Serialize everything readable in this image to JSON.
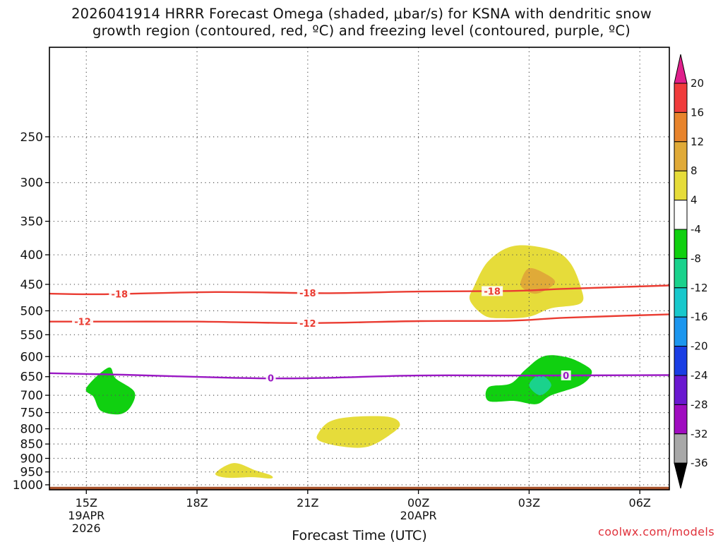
{
  "chart_data": {
    "type": "heatmap",
    "title_line1": "2026041914 HRRR Forecast Omega (shaded, μbar/s) for KSNA with dendritic snow",
    "title_line2": "growth region (contoured, red, ºC) and freezing level (contoured, purple, ºC)",
    "xlabel": "Forecast Time (UTC)",
    "ylabel": "",
    "credit": "coolwx.com/models",
    "xlim": [
      -1,
      15.8
    ],
    "ylim": [
      1020,
      175
    ],
    "y_scale": "log-pressure",
    "y_ticks": [
      250,
      300,
      350,
      400,
      450,
      500,
      550,
      600,
      650,
      700,
      750,
      800,
      850,
      900,
      950,
      1000
    ],
    "x_ticks": [
      {
        "hour": 0,
        "lines": [
          "15Z",
          "19APR",
          "2026"
        ]
      },
      {
        "hour": 3,
        "lines": [
          "18Z"
        ]
      },
      {
        "hour": 6,
        "lines": [
          "21Z"
        ]
      },
      {
        "hour": 9,
        "lines": [
          "00Z",
          "20APR"
        ]
      },
      {
        "hour": 12,
        "lines": [
          "03Z"
        ]
      },
      {
        "hour": 15,
        "lines": [
          "06Z"
        ]
      }
    ],
    "grid": true,
    "surface": {
      "pressure_top": 1008,
      "color": "#a8542d"
    },
    "colorbar": {
      "labels": [
        "20",
        "16",
        "12",
        "8",
        "4",
        "-4",
        "-8",
        "-12",
        "-16",
        "-20",
        "-24",
        "-28",
        "-32",
        "-36"
      ],
      "bins": [
        {
          "range": [
            16,
            20
          ],
          "color": "#f03c3c"
        },
        {
          "range": [
            12,
            16
          ],
          "color": "#e8842c"
        },
        {
          "range": [
            8,
            12
          ],
          "color": "#e0aa38"
        },
        {
          "range": [
            4,
            8
          ],
          "color": "#e6dc3a"
        },
        {
          "range": [
            -4,
            4
          ],
          "color": "#ffffff"
        },
        {
          "range": [
            -8,
            -4
          ],
          "color": "#10d010"
        },
        {
          "range": [
            -12,
            -8
          ],
          "color": "#1ad28c"
        },
        {
          "range": [
            -16,
            -12
          ],
          "color": "#18c8cc"
        },
        {
          "range": [
            -20,
            -16
          ],
          "color": "#1c96ee"
        },
        {
          "range": [
            -24,
            -20
          ],
          "color": "#1a3ee4"
        },
        {
          "range": [
            -28,
            -24
          ],
          "color": "#6a18d0"
        },
        {
          "range": [
            -32,
            -28
          ],
          "color": "#a00cc0"
        },
        {
          "range": [
            -36,
            -32
          ],
          "color": "#a8a8a8"
        }
      ],
      "over_color": "#e0208c",
      "under_color": "#000000"
    },
    "omega_regions": [
      {
        "name": "ascent-upper",
        "value": 6,
        "color": "#e6dc3a",
        "points": [
          [
            10.5,
            455
          ],
          [
            10.9,
            410
          ],
          [
            11.6,
            386
          ],
          [
            12.6,
            392
          ],
          [
            13.1,
            412
          ],
          [
            13.4,
            455
          ],
          [
            13.4,
            485
          ],
          [
            12.6,
            495
          ],
          [
            12.0,
            512
          ],
          [
            11.3,
            515
          ],
          [
            10.8,
            510
          ],
          [
            10.4,
            480
          ]
        ]
      },
      {
        "name": "ascent-upper-core",
        "value": 10,
        "color": "#e0aa38",
        "points": [
          [
            11.8,
            440
          ],
          [
            12.0,
            422
          ],
          [
            12.4,
            430
          ],
          [
            12.7,
            447
          ],
          [
            12.2,
            467
          ],
          [
            11.8,
            455
          ]
        ]
      },
      {
        "name": "ascent-mid",
        "value": 5,
        "color": "#e6dc3a",
        "points": [
          [
            6.3,
            812
          ],
          [
            6.6,
            777
          ],
          [
            7.2,
            763
          ],
          [
            8.2,
            763
          ],
          [
            8.5,
            787
          ],
          [
            8.2,
            822
          ],
          [
            7.6,
            860
          ],
          [
            6.9,
            858
          ],
          [
            6.3,
            838
          ]
        ]
      },
      {
        "name": "ascent-low",
        "value": 5,
        "color": "#e6dc3a",
        "points": [
          [
            3.5,
            955
          ],
          [
            4.0,
            917
          ],
          [
            4.6,
            945
          ],
          [
            5.0,
            963
          ],
          [
            5.0,
            975
          ],
          [
            4.5,
            970
          ],
          [
            3.8,
            972
          ]
        ]
      },
      {
        "name": "descent-left",
        "value": -6,
        "color": "#10d010",
        "points": [
          [
            0.0,
            680
          ],
          [
            0.6,
            627
          ],
          [
            0.8,
            655
          ],
          [
            1.3,
            690
          ],
          [
            1.2,
            733
          ],
          [
            0.9,
            755
          ],
          [
            0.4,
            745
          ],
          [
            0.2,
            705
          ]
        ]
      },
      {
        "name": "descent-right",
        "value": -6,
        "color": "#10d010",
        "points": [
          [
            10.9,
            678
          ],
          [
            11.5,
            668
          ],
          [
            11.9,
            632
          ],
          [
            12.4,
            599
          ],
          [
            13.0,
            601
          ],
          [
            13.5,
            620
          ],
          [
            13.7,
            640
          ],
          [
            13.4,
            672
          ],
          [
            12.6,
            700
          ],
          [
            12.2,
            725
          ],
          [
            11.6,
            716
          ],
          [
            10.9,
            716
          ]
        ]
      },
      {
        "name": "descent-right-core",
        "value": -10,
        "color": "#1ad28c",
        "points": [
          [
            12.0,
            672
          ],
          [
            12.3,
            645
          ],
          [
            12.6,
            672
          ],
          [
            12.3,
            700
          ]
        ]
      }
    ],
    "contours": [
      {
        "name": "dendritic-minus-18",
        "label": "-18",
        "color": "#ea3c32",
        "hours": [
          -1,
          0.5,
          3.5,
          6.5,
          9,
          11.5,
          13,
          15.8
        ],
        "pressures": [
          467,
          468,
          464,
          466,
          463,
          462,
          458,
          452
        ],
        "label_hours": [
          0.9,
          6,
          11
        ]
      },
      {
        "name": "dendritic-minus-12",
        "label": "-12",
        "color": "#ea3c32",
        "hours": [
          -1,
          1,
          3,
          6,
          9,
          11.5,
          13,
          15.8
        ],
        "pressures": [
          522,
          522,
          522,
          525,
          521,
          520,
          514,
          507
        ],
        "label_hours": [
          -0.1,
          6
        ]
      },
      {
        "name": "freezing-level-0",
        "label": "0",
        "color": "#9a18c4",
        "hours": [
          -1,
          1,
          4,
          6,
          9,
          12,
          15.8
        ],
        "pressures": [
          641,
          645,
          653,
          654,
          647,
          647,
          646
        ],
        "label_hours": [
          5,
          13
        ]
      }
    ]
  }
}
